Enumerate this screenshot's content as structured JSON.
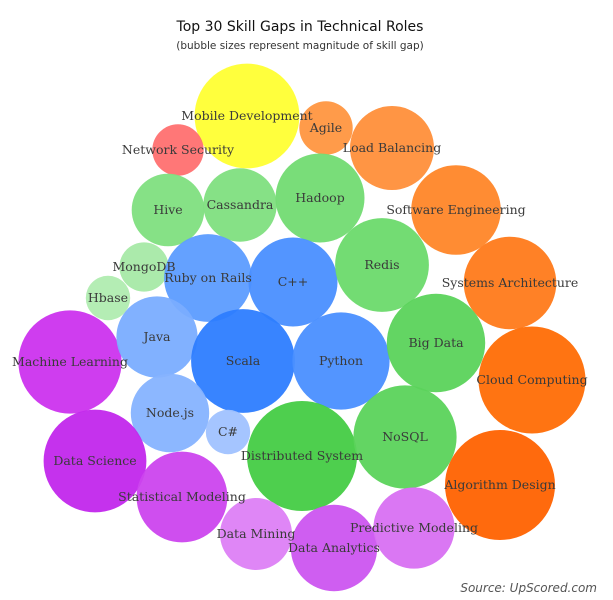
{
  "chart_data": {
    "type": "bubble",
    "title": "Top 30 Skill Gaps in Technical Roles",
    "subtitle": "(bubble sizes represent magnitude of skill gap)",
    "source": "Source: UpScored.com",
    "bubbles": [
      {
        "label": "Mobile Development",
        "size": 100,
        "color": "#ffff33"
      },
      {
        "label": "Agile",
        "size": 26,
        "color": "#ff9640"
      },
      {
        "label": "Network Security",
        "size": 24,
        "color": "#ff7070"
      },
      {
        "label": "Load Balancing",
        "size": 64,
        "color": "#ff8f3a"
      },
      {
        "label": "Hive",
        "size": 48,
        "color": "#80df80"
      },
      {
        "label": "Cassandra",
        "size": 49,
        "color": "#80df80"
      },
      {
        "label": "Hadoop",
        "size": 72,
        "color": "#72db72"
      },
      {
        "label": "Software Engineering",
        "size": 73,
        "color": "#ff8628"
      },
      {
        "label": "MongoDB",
        "size": 22,
        "color": "#a6e9a6"
      },
      {
        "label": "Ruby on Rails",
        "size": 70,
        "color": "#5c9cff"
      },
      {
        "label": "C++",
        "size": 72,
        "color": "#4a8fff"
      },
      {
        "label": "Redis",
        "size": 80,
        "color": "#6cda6c"
      },
      {
        "label": "Systems Architecture",
        "size": 78,
        "color": "#ff7a1a"
      },
      {
        "label": "Hbase",
        "size": 18,
        "color": "#b0ecb0"
      },
      {
        "label": "Machine Learning",
        "size": 97,
        "color": "#cc33ee"
      },
      {
        "label": "Java",
        "size": 60,
        "color": "#7aadff"
      },
      {
        "label": "Scala",
        "size": 98,
        "color": "#2d7dff"
      },
      {
        "label": "Python",
        "size": 86,
        "color": "#4a8fff"
      },
      {
        "label": "Big Data",
        "size": 88,
        "color": "#5bd35b"
      },
      {
        "label": "Cloud Computing",
        "size": 104,
        "color": "#ff6d05"
      },
      {
        "label": "Node.js",
        "size": 56,
        "color": "#86b3ff"
      },
      {
        "label": "C#",
        "size": 18,
        "color": "#a0c2ff"
      },
      {
        "label": "Data Science",
        "size": 96,
        "color": "#c227ec"
      },
      {
        "label": "Distributed System",
        "size": 110,
        "color": "#44cc44"
      },
      {
        "label": "NoSQL",
        "size": 97,
        "color": "#5bd35b"
      },
      {
        "label": "Algorithm Design",
        "size": 110,
        "color": "#ff6200"
      },
      {
        "label": "Statistical Modeling",
        "size": 75,
        "color": "#cc44ee"
      },
      {
        "label": "Data Mining",
        "size": 47,
        "color": "#dd80f5"
      },
      {
        "label": "Data Analytics",
        "size": 68,
        "color": "#cc55f0"
      },
      {
        "label": "Predictive Modeling",
        "size": 60,
        "color": "#d870f2"
      }
    ]
  }
}
